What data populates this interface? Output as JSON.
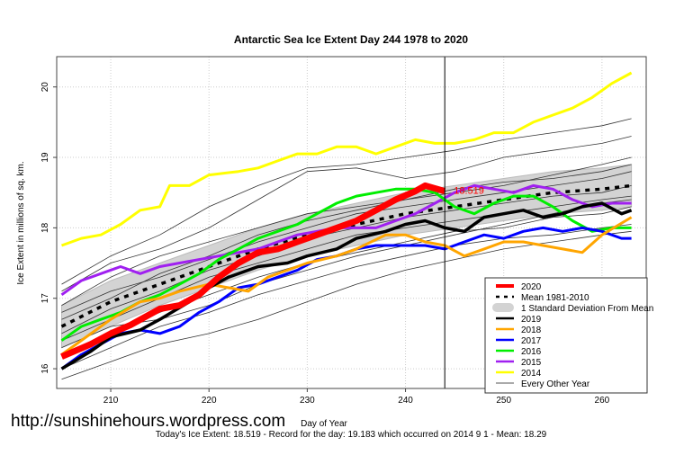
{
  "chart_data": {
    "type": "line",
    "title": "Antarctic Sea Ice Extent Day 244 1978 to 2020",
    "xlabel": "Day of Year",
    "ylabel": "Ice Extent in millions of sq. km.",
    "xlim": [
      204.5,
      264.5
    ],
    "ylim": [
      15.72,
      20.43
    ],
    "xticks": [
      210,
      220,
      230,
      240,
      250,
      260
    ],
    "yticks": [
      16,
      17,
      18,
      19,
      20
    ],
    "grid": true,
    "legend_position": "bottom-right",
    "marker_day": 244,
    "marker_label": "18.519",
    "footer": "Today's Ice Extent: 18.519  - Record for the day: 19.183 which occurred on 2014 9 1  - Mean: 18.29",
    "watermark": "http://sunshinehours.wordpress.com",
    "legend": [
      {
        "label": "2020",
        "color": "#ff0000",
        "style": "thick"
      },
      {
        "label": "Mean 1981-2010",
        "color": "#000000",
        "style": "dashed"
      },
      {
        "label": "1 Standard Deviation From Mean",
        "color": "#d3d3d3",
        "style": "band"
      },
      {
        "label": "2019",
        "color": "#000000",
        "style": "solid"
      },
      {
        "label": "2018",
        "color": "#ffa500",
        "style": "solid"
      },
      {
        "label": "2017",
        "color": "#0000ff",
        "style": "solid"
      },
      {
        "label": "2016",
        "color": "#00ee00",
        "style": "solid"
      },
      {
        "label": "2015",
        "color": "#a020f0",
        "style": "solid"
      },
      {
        "label": "2014",
        "color": "#ffff00",
        "style": "solid"
      },
      {
        "label": "Every Other Year",
        "color": "#555555",
        "style": "thin"
      }
    ],
    "sd_band": {
      "x": [
        205,
        210,
        215,
        220,
        225,
        230,
        235,
        240,
        245,
        250,
        255,
        260,
        263
      ],
      "lower": [
        16.3,
        16.6,
        16.9,
        17.15,
        17.4,
        17.6,
        17.75,
        17.9,
        18.0,
        18.1,
        18.2,
        18.25,
        18.3
      ],
      "upper": [
        16.9,
        17.25,
        17.5,
        17.75,
        18.0,
        18.2,
        18.35,
        18.5,
        18.6,
        18.7,
        18.8,
        18.85,
        18.9
      ]
    },
    "mean": {
      "x": [
        205,
        210,
        215,
        220,
        225,
        230,
        235,
        240,
        245,
        250,
        255,
        260,
        263
      ],
      "y": [
        16.6,
        16.95,
        17.2,
        17.45,
        17.7,
        17.9,
        18.05,
        18.2,
        18.3,
        18.4,
        18.5,
        18.55,
        18.6
      ]
    },
    "other_years": [
      {
        "x": [
          205,
          210,
          215,
          220,
          225,
          230,
          235,
          240,
          245,
          250,
          255,
          260,
          263
        ],
        "y": [
          17.2,
          17.6,
          17.9,
          18.3,
          18.6,
          18.85,
          18.9,
          19.0,
          19.1,
          19.25,
          19.35,
          19.45,
          19.55
        ]
      },
      {
        "x": [
          205,
          210,
          215,
          220,
          225,
          230,
          235,
          240,
          245,
          250,
          255,
          260,
          263
        ],
        "y": [
          17.1,
          17.5,
          17.7,
          18.0,
          18.4,
          18.8,
          18.85,
          18.7,
          18.8,
          19.0,
          19.1,
          19.2,
          19.3
        ]
      },
      {
        "x": [
          205,
          210,
          215,
          220,
          225,
          230,
          235,
          240,
          245,
          250,
          255,
          260,
          263
        ],
        "y": [
          16.9,
          17.3,
          17.6,
          17.8,
          18.0,
          18.2,
          18.3,
          18.4,
          18.5,
          18.6,
          18.75,
          18.9,
          19.0
        ]
      },
      {
        "x": [
          205,
          210,
          215,
          220,
          225,
          230,
          235,
          240,
          245,
          250,
          255,
          260,
          263
        ],
        "y": [
          16.8,
          17.1,
          17.3,
          17.55,
          17.8,
          18.0,
          18.2,
          18.3,
          18.4,
          18.5,
          18.6,
          18.7,
          18.8
        ]
      },
      {
        "x": [
          205,
          210,
          215,
          220,
          225,
          230,
          235,
          240,
          245,
          250,
          255,
          260,
          263
        ],
        "y": [
          16.5,
          16.85,
          17.1,
          17.4,
          17.6,
          17.85,
          18.0,
          18.15,
          18.25,
          18.35,
          18.45,
          18.5,
          18.6
        ]
      },
      {
        "x": [
          205,
          210,
          215,
          220,
          225,
          230,
          235,
          240,
          245,
          250,
          255,
          260,
          263
        ],
        "y": [
          16.4,
          16.7,
          17.0,
          17.3,
          17.5,
          17.7,
          17.9,
          18.0,
          18.1,
          18.2,
          18.3,
          18.4,
          18.45
        ]
      },
      {
        "x": [
          205,
          210,
          215,
          220,
          225,
          230,
          235,
          240,
          245,
          250,
          255,
          260,
          263
        ],
        "y": [
          16.2,
          16.5,
          16.8,
          17.05,
          17.3,
          17.5,
          17.65,
          17.8,
          17.95,
          18.0,
          18.15,
          18.2,
          18.3
        ]
      },
      {
        "x": [
          205,
          210,
          215,
          220,
          225,
          230,
          235,
          240,
          245,
          250,
          255,
          260,
          263
        ],
        "y": [
          16.0,
          16.3,
          16.6,
          16.8,
          17.05,
          17.25,
          17.45,
          17.6,
          17.75,
          17.85,
          17.9,
          18.0,
          18.05
        ]
      },
      {
        "x": [
          205,
          210,
          215,
          220,
          225,
          230,
          235,
          240,
          245,
          250,
          255,
          260,
          263
        ],
        "y": [
          15.85,
          16.1,
          16.35,
          16.5,
          16.7,
          16.95,
          17.2,
          17.4,
          17.55,
          17.7,
          17.8,
          17.9,
          17.95
        ]
      },
      {
        "x": [
          205,
          210,
          215,
          220,
          225,
          230,
          235,
          240,
          245,
          250,
          255,
          260,
          263
        ],
        "y": [
          16.7,
          17.0,
          17.35,
          17.6,
          17.9,
          18.1,
          18.25,
          18.4,
          18.55,
          18.65,
          18.7,
          18.8,
          18.9
        ]
      },
      {
        "x": [
          205,
          210,
          215,
          220,
          225,
          230,
          235,
          240,
          245,
          250,
          255,
          260,
          263
        ],
        "y": [
          16.3,
          16.6,
          16.7,
          16.9,
          17.2,
          17.4,
          17.6,
          17.75,
          17.9,
          18.05,
          18.2,
          18.35,
          18.4
        ]
      }
    ],
    "series": [
      {
        "name": "2014",
        "color": "#ffff00",
        "width": 3,
        "x": [
          205,
          207,
          209,
          211,
          213,
          215,
          216,
          218,
          220,
          223,
          225,
          227,
          229,
          231,
          233,
          235,
          237,
          239,
          241,
          243,
          245,
          247,
          249,
          251,
          253,
          255,
          257,
          259,
          261,
          263
        ],
        "y": [
          17.75,
          17.85,
          17.9,
          18.05,
          18.25,
          18.3,
          18.6,
          18.6,
          18.75,
          18.8,
          18.85,
          18.95,
          19.05,
          19.05,
          19.15,
          19.15,
          19.05,
          19.15,
          19.25,
          19.2,
          19.2,
          19.25,
          19.35,
          19.35,
          19.5,
          19.6,
          19.7,
          19.85,
          20.05,
          20.2
        ]
      },
      {
        "name": "2015",
        "color": "#a020f0",
        "width": 3,
        "x": [
          205,
          207,
          209,
          211,
          213,
          215,
          217,
          219,
          221,
          223,
          225,
          227,
          229,
          231,
          233,
          235,
          237,
          239,
          241,
          243,
          245,
          247,
          249,
          251,
          253,
          255,
          257,
          259,
          261,
          263
        ],
        "y": [
          17.05,
          17.25,
          17.35,
          17.45,
          17.35,
          17.45,
          17.5,
          17.55,
          17.6,
          17.65,
          17.7,
          17.8,
          17.9,
          17.95,
          18.0,
          18.0,
          18.0,
          18.1,
          18.2,
          18.35,
          18.5,
          18.6,
          18.55,
          18.5,
          18.6,
          18.55,
          18.4,
          18.3,
          18.35,
          18.35
        ]
      },
      {
        "name": "2016",
        "color": "#00ee00",
        "width": 3,
        "x": [
          205,
          207,
          209,
          211,
          213,
          215,
          217,
          219,
          221,
          223,
          225,
          227,
          229,
          231,
          233,
          235,
          237,
          239,
          241,
          243,
          245,
          247,
          249,
          251,
          253,
          255,
          257,
          259,
          261,
          263
        ],
        "y": [
          16.4,
          16.6,
          16.7,
          16.8,
          16.95,
          17.05,
          17.2,
          17.35,
          17.55,
          17.7,
          17.85,
          17.95,
          18.05,
          18.2,
          18.35,
          18.45,
          18.5,
          18.55,
          18.55,
          18.5,
          18.3,
          18.2,
          18.35,
          18.45,
          18.45,
          18.3,
          18.1,
          17.95,
          18.0,
          18.0
        ]
      },
      {
        "name": "2017",
        "color": "#0000ff",
        "width": 3,
        "x": [
          205,
          207,
          209,
          211,
          213,
          215,
          217,
          219,
          221,
          223,
          225,
          227,
          229,
          231,
          233,
          235,
          237,
          240,
          242,
          244,
          246,
          248,
          250,
          252,
          254,
          256,
          258,
          260,
          262,
          263
        ],
        "y": [
          16.0,
          16.2,
          16.35,
          16.5,
          16.55,
          16.5,
          16.6,
          16.8,
          16.95,
          17.15,
          17.2,
          17.3,
          17.4,
          17.55,
          17.6,
          17.7,
          17.75,
          17.75,
          17.75,
          17.7,
          17.8,
          17.9,
          17.85,
          17.95,
          18.0,
          17.95,
          18.0,
          17.95,
          17.85,
          17.85
        ]
      },
      {
        "name": "2018",
        "color": "#ffa500",
        "width": 3,
        "x": [
          205,
          208,
          210,
          213,
          215,
          217,
          220,
          222,
          224,
          226,
          228,
          230,
          233,
          235,
          238,
          240,
          242,
          244,
          246,
          248,
          250,
          252,
          254,
          256,
          258,
          260,
          263
        ],
        "y": [
          16.2,
          16.5,
          16.7,
          16.95,
          17.0,
          17.1,
          17.2,
          17.15,
          17.1,
          17.3,
          17.4,
          17.5,
          17.6,
          17.7,
          17.9,
          17.9,
          17.8,
          17.75,
          17.6,
          17.7,
          17.8,
          17.8,
          17.75,
          17.7,
          17.65,
          17.9,
          18.15
        ]
      },
      {
        "name": "2019",
        "color": "#000000",
        "width": 3.5,
        "x": [
          205,
          208,
          210,
          213,
          215,
          218,
          220,
          222,
          225,
          228,
          230,
          233,
          235,
          238,
          240,
          242,
          244,
          246,
          248,
          250,
          252,
          254,
          256,
          258,
          260,
          262,
          263
        ],
        "y": [
          16.0,
          16.25,
          16.45,
          16.55,
          16.7,
          16.95,
          17.15,
          17.3,
          17.45,
          17.5,
          17.6,
          17.7,
          17.85,
          17.95,
          18.05,
          18.1,
          18.0,
          17.95,
          18.15,
          18.2,
          18.25,
          18.15,
          18.2,
          18.3,
          18.35,
          18.2,
          18.25
        ]
      },
      {
        "name": "2020",
        "color": "#ff0000",
        "width": 7,
        "x": [
          205,
          208,
          210,
          212,
          215,
          217,
          219,
          221,
          223,
          225,
          227,
          229,
          231,
          233,
          235,
          237,
          239,
          241,
          242,
          244
        ],
        "y": [
          16.17,
          16.35,
          16.5,
          16.62,
          16.85,
          16.9,
          17.05,
          17.3,
          17.5,
          17.65,
          17.7,
          17.8,
          17.9,
          18.0,
          18.1,
          18.25,
          18.4,
          18.52,
          18.6,
          18.52
        ]
      }
    ]
  }
}
